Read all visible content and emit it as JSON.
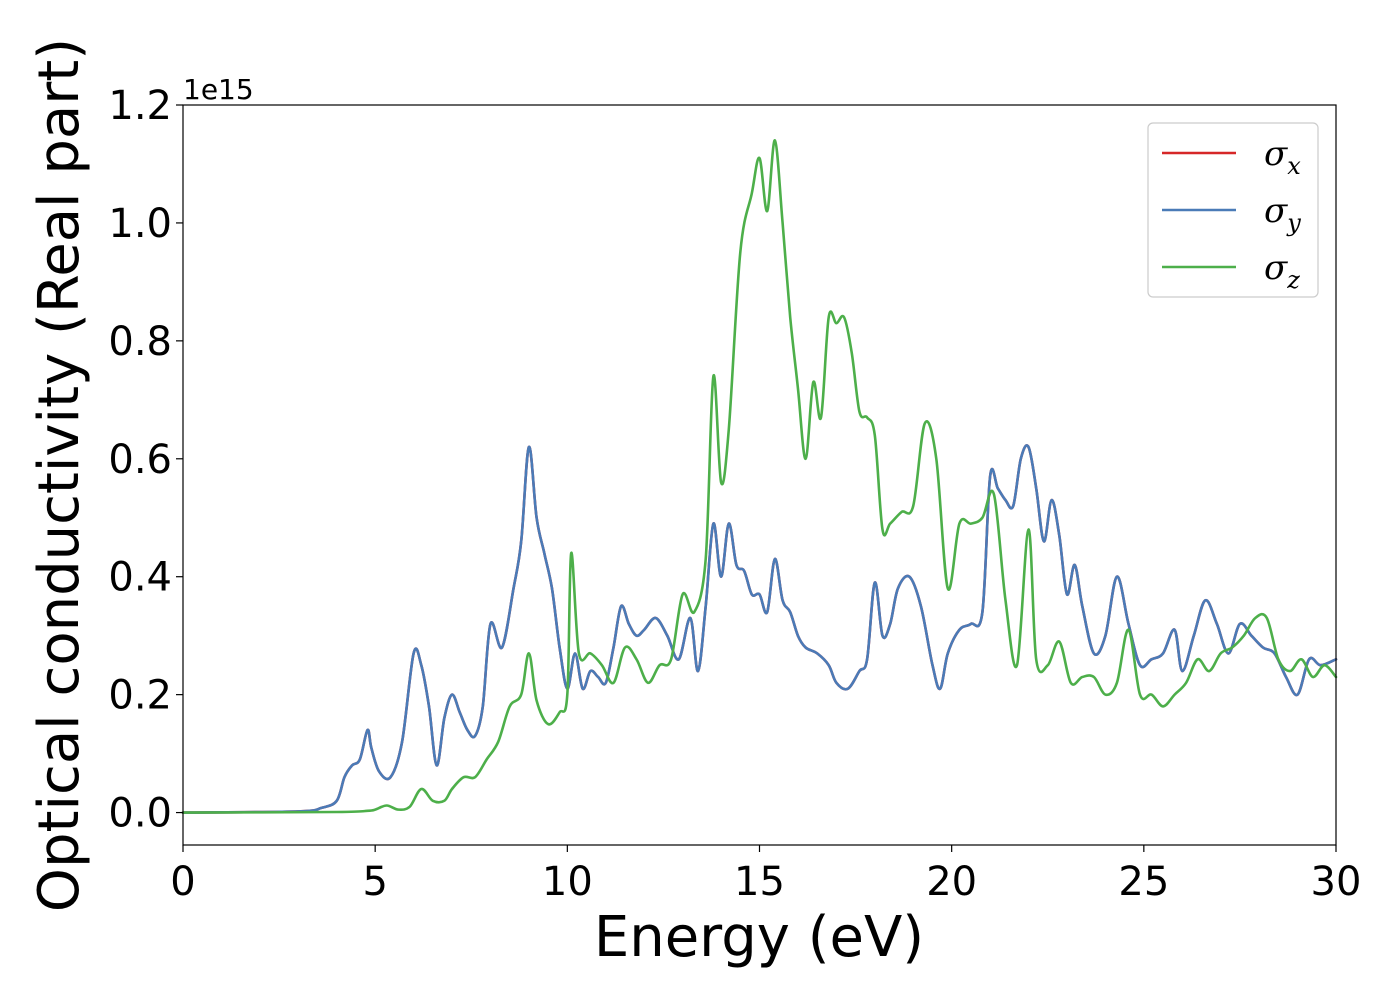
{
  "chart_data": {
    "type": "line",
    "xlabel": "Energy (eV)",
    "ylabel": "Optical conductivity (Real part)",
    "y_offset_label": "1e15",
    "xlim": [
      0,
      30
    ],
    "ylim": [
      -0.055,
      1.2
    ],
    "xticks": [
      0,
      5,
      10,
      15,
      20,
      25,
      30
    ],
    "xtick_labels": [
      "0",
      "5",
      "10",
      "15",
      "20",
      "25",
      "30"
    ],
    "yticks": [
      0.0,
      0.2,
      0.4,
      0.6,
      0.8,
      1.0,
      1.2
    ],
    "ytick_labels": [
      "0.0",
      "0.2",
      "0.4",
      "0.6",
      "0.8",
      "1.0",
      "1.2"
    ],
    "grid": false,
    "legend_position": "top-right",
    "series": [
      {
        "name": "σx",
        "legend_symbol": "σ",
        "legend_subscript": "x",
        "color": "#d62728",
        "x": [
          0,
          3.0,
          3.6,
          4.0,
          4.2,
          4.4,
          4.6,
          4.8,
          4.9,
          5.1,
          5.4,
          5.7,
          6.0,
          6.2,
          6.4,
          6.6,
          6.8,
          7.0,
          7.2,
          7.4,
          7.6,
          7.8,
          8.0,
          8.3,
          8.6,
          8.8,
          9.0,
          9.2,
          9.4,
          9.6,
          9.8,
          10.0,
          10.2,
          10.4,
          10.6,
          10.8,
          11.0,
          11.2,
          11.4,
          11.6,
          11.8,
          12.0,
          12.3,
          12.6,
          12.9,
          13.2,
          13.4,
          13.6,
          13.8,
          14.0,
          14.2,
          14.4,
          14.6,
          14.8,
          15.0,
          15.2,
          15.4,
          15.6,
          15.8,
          16.0,
          16.2,
          16.5,
          16.8,
          17.0,
          17.3,
          17.6,
          17.8,
          18.0,
          18.2,
          18.4,
          18.6,
          18.9,
          19.2,
          19.5,
          19.7,
          19.9,
          20.2,
          20.5,
          20.8,
          21.0,
          21.2,
          21.4,
          21.6,
          21.8,
          22.0,
          22.2,
          22.4,
          22.6,
          22.8,
          23.0,
          23.2,
          23.4,
          23.7,
          24.0,
          24.3,
          24.6,
          24.9,
          25.2,
          25.5,
          25.8,
          26.0,
          26.3,
          26.6,
          26.9,
          27.2,
          27.5,
          27.8,
          28.1,
          28.4,
          28.7,
          29.0,
          29.3,
          29.6,
          30.0
        ],
        "y": [
          0.0,
          0.002,
          0.008,
          0.02,
          0.06,
          0.08,
          0.09,
          0.14,
          0.11,
          0.07,
          0.06,
          0.12,
          0.27,
          0.25,
          0.18,
          0.08,
          0.16,
          0.2,
          0.17,
          0.14,
          0.13,
          0.18,
          0.32,
          0.28,
          0.38,
          0.46,
          0.62,
          0.5,
          0.44,
          0.38,
          0.28,
          0.21,
          0.27,
          0.21,
          0.24,
          0.23,
          0.22,
          0.28,
          0.35,
          0.32,
          0.3,
          0.31,
          0.33,
          0.3,
          0.26,
          0.33,
          0.24,
          0.35,
          0.49,
          0.4,
          0.49,
          0.42,
          0.41,
          0.37,
          0.37,
          0.34,
          0.43,
          0.36,
          0.34,
          0.3,
          0.28,
          0.27,
          0.25,
          0.22,
          0.21,
          0.24,
          0.26,
          0.39,
          0.3,
          0.32,
          0.38,
          0.4,
          0.35,
          0.25,
          0.21,
          0.27,
          0.31,
          0.32,
          0.34,
          0.57,
          0.55,
          0.53,
          0.52,
          0.6,
          0.62,
          0.55,
          0.46,
          0.53,
          0.47,
          0.37,
          0.42,
          0.35,
          0.27,
          0.3,
          0.4,
          0.32,
          0.25,
          0.26,
          0.27,
          0.31,
          0.24,
          0.3,
          0.36,
          0.32,
          0.27,
          0.32,
          0.3,
          0.28,
          0.27,
          0.23,
          0.2,
          0.26,
          0.25,
          0.26
        ]
      },
      {
        "name": "σy",
        "legend_symbol": "σ",
        "legend_subscript": "y",
        "color": "#4a7bb7",
        "x": [
          0,
          3.0,
          3.6,
          4.0,
          4.2,
          4.4,
          4.6,
          4.8,
          4.9,
          5.1,
          5.4,
          5.7,
          6.0,
          6.2,
          6.4,
          6.6,
          6.8,
          7.0,
          7.2,
          7.4,
          7.6,
          7.8,
          8.0,
          8.3,
          8.6,
          8.8,
          9.0,
          9.2,
          9.4,
          9.6,
          9.8,
          10.0,
          10.2,
          10.4,
          10.6,
          10.8,
          11.0,
          11.2,
          11.4,
          11.6,
          11.8,
          12.0,
          12.3,
          12.6,
          12.9,
          13.2,
          13.4,
          13.6,
          13.8,
          14.0,
          14.2,
          14.4,
          14.6,
          14.8,
          15.0,
          15.2,
          15.4,
          15.6,
          15.8,
          16.0,
          16.2,
          16.5,
          16.8,
          17.0,
          17.3,
          17.6,
          17.8,
          18.0,
          18.2,
          18.4,
          18.6,
          18.9,
          19.2,
          19.5,
          19.7,
          19.9,
          20.2,
          20.5,
          20.8,
          21.0,
          21.2,
          21.4,
          21.6,
          21.8,
          22.0,
          22.2,
          22.4,
          22.6,
          22.8,
          23.0,
          23.2,
          23.4,
          23.7,
          24.0,
          24.3,
          24.6,
          24.9,
          25.2,
          25.5,
          25.8,
          26.0,
          26.3,
          26.6,
          26.9,
          27.2,
          27.5,
          27.8,
          28.1,
          28.4,
          28.7,
          29.0,
          29.3,
          29.6,
          30.0
        ],
        "y": [
          0.0,
          0.002,
          0.008,
          0.02,
          0.06,
          0.08,
          0.09,
          0.14,
          0.11,
          0.07,
          0.06,
          0.12,
          0.27,
          0.25,
          0.18,
          0.08,
          0.16,
          0.2,
          0.17,
          0.14,
          0.13,
          0.18,
          0.32,
          0.28,
          0.38,
          0.46,
          0.62,
          0.5,
          0.44,
          0.38,
          0.28,
          0.21,
          0.27,
          0.21,
          0.24,
          0.23,
          0.22,
          0.28,
          0.35,
          0.32,
          0.3,
          0.31,
          0.33,
          0.3,
          0.26,
          0.33,
          0.24,
          0.35,
          0.49,
          0.4,
          0.49,
          0.42,
          0.41,
          0.37,
          0.37,
          0.34,
          0.43,
          0.36,
          0.34,
          0.3,
          0.28,
          0.27,
          0.25,
          0.22,
          0.21,
          0.24,
          0.26,
          0.39,
          0.3,
          0.32,
          0.38,
          0.4,
          0.35,
          0.25,
          0.21,
          0.27,
          0.31,
          0.32,
          0.34,
          0.57,
          0.55,
          0.53,
          0.52,
          0.6,
          0.62,
          0.55,
          0.46,
          0.53,
          0.47,
          0.37,
          0.42,
          0.35,
          0.27,
          0.3,
          0.4,
          0.32,
          0.25,
          0.26,
          0.27,
          0.31,
          0.24,
          0.3,
          0.36,
          0.32,
          0.27,
          0.32,
          0.3,
          0.28,
          0.27,
          0.23,
          0.2,
          0.26,
          0.25,
          0.26
        ]
      },
      {
        "name": "σz",
        "legend_symbol": "σ",
        "legend_subscript": "z",
        "color": "#4daf4a",
        "x": [
          0,
          4.0,
          4.8,
          5.0,
          5.3,
          5.6,
          5.9,
          6.2,
          6.5,
          6.8,
          7.0,
          7.3,
          7.6,
          7.9,
          8.2,
          8.5,
          8.8,
          9.0,
          9.2,
          9.5,
          9.8,
          10.0,
          10.1,
          10.3,
          10.6,
          10.9,
          11.2,
          11.5,
          11.8,
          12.1,
          12.4,
          12.7,
          13.0,
          13.3,
          13.6,
          13.8,
          14.0,
          14.2,
          14.5,
          14.8,
          15.0,
          15.2,
          15.4,
          15.6,
          15.8,
          16.0,
          16.2,
          16.4,
          16.6,
          16.8,
          17.0,
          17.2,
          17.4,
          17.6,
          17.8,
          18.0,
          18.2,
          18.4,
          18.7,
          19.0,
          19.3,
          19.6,
          19.9,
          20.2,
          20.5,
          20.8,
          21.1,
          21.4,
          21.7,
          22.0,
          22.2,
          22.5,
          22.8,
          23.1,
          23.4,
          23.7,
          24.0,
          24.3,
          24.6,
          24.9,
          25.2,
          25.5,
          25.8,
          26.1,
          26.4,
          26.7,
          27.0,
          27.3,
          27.6,
          27.9,
          28.2,
          28.5,
          28.8,
          29.1,
          29.4,
          29.7,
          30.0
        ],
        "y": [
          0.0,
          0.001,
          0.003,
          0.005,
          0.012,
          0.005,
          0.01,
          0.04,
          0.02,
          0.02,
          0.04,
          0.06,
          0.06,
          0.09,
          0.12,
          0.18,
          0.2,
          0.27,
          0.19,
          0.15,
          0.17,
          0.2,
          0.44,
          0.27,
          0.27,
          0.25,
          0.22,
          0.28,
          0.26,
          0.22,
          0.25,
          0.26,
          0.37,
          0.34,
          0.43,
          0.74,
          0.56,
          0.65,
          0.95,
          1.05,
          1.11,
          1.02,
          1.14,
          1.0,
          0.84,
          0.72,
          0.6,
          0.73,
          0.67,
          0.84,
          0.83,
          0.84,
          0.78,
          0.68,
          0.67,
          0.64,
          0.48,
          0.49,
          0.51,
          0.52,
          0.66,
          0.6,
          0.38,
          0.49,
          0.49,
          0.5,
          0.54,
          0.36,
          0.25,
          0.48,
          0.26,
          0.25,
          0.29,
          0.22,
          0.23,
          0.23,
          0.2,
          0.22,
          0.31,
          0.2,
          0.2,
          0.18,
          0.2,
          0.22,
          0.26,
          0.24,
          0.27,
          0.28,
          0.3,
          0.33,
          0.33,
          0.26,
          0.24,
          0.26,
          0.23,
          0.25,
          0.23
        ]
      }
    ]
  }
}
